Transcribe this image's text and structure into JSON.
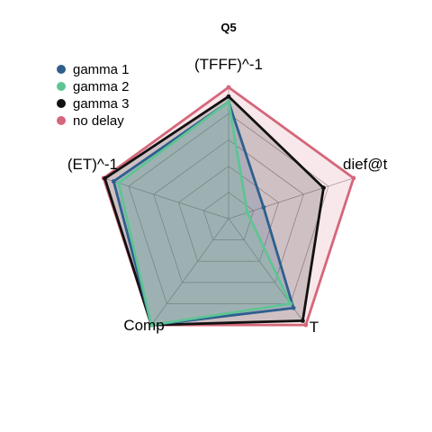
{
  "chart_data": {
    "type": "radar",
    "title": "Q5",
    "axes": [
      "(TFFF)^-1",
      "dief@t",
      "T",
      "Comp",
      "(ET)^-1"
    ],
    "rlim": [
      0,
      1
    ],
    "grid_levels": 5,
    "legend_position": "top-left",
    "series": [
      {
        "name": "no delay",
        "color": "#d4677a",
        "values": [
          1.0,
          1.0,
          1.0,
          1.0,
          1.0
        ]
      },
      {
        "name": "gamma 3",
        "color": "#111111",
        "values": [
          0.93,
          0.76,
          0.96,
          1.0,
          0.99
        ]
      },
      {
        "name": "gamma 1",
        "color": "#2e5f8f",
        "values": [
          0.89,
          0.28,
          0.84,
          1.0,
          0.92
        ]
      },
      {
        "name": "gamma 2",
        "color": "#5ec494",
        "values": [
          0.89,
          0.15,
          0.8,
          1.0,
          0.88
        ]
      }
    ],
    "legend_order": [
      "gamma 1",
      "gamma 2",
      "gamma 3",
      "no delay"
    ]
  }
}
